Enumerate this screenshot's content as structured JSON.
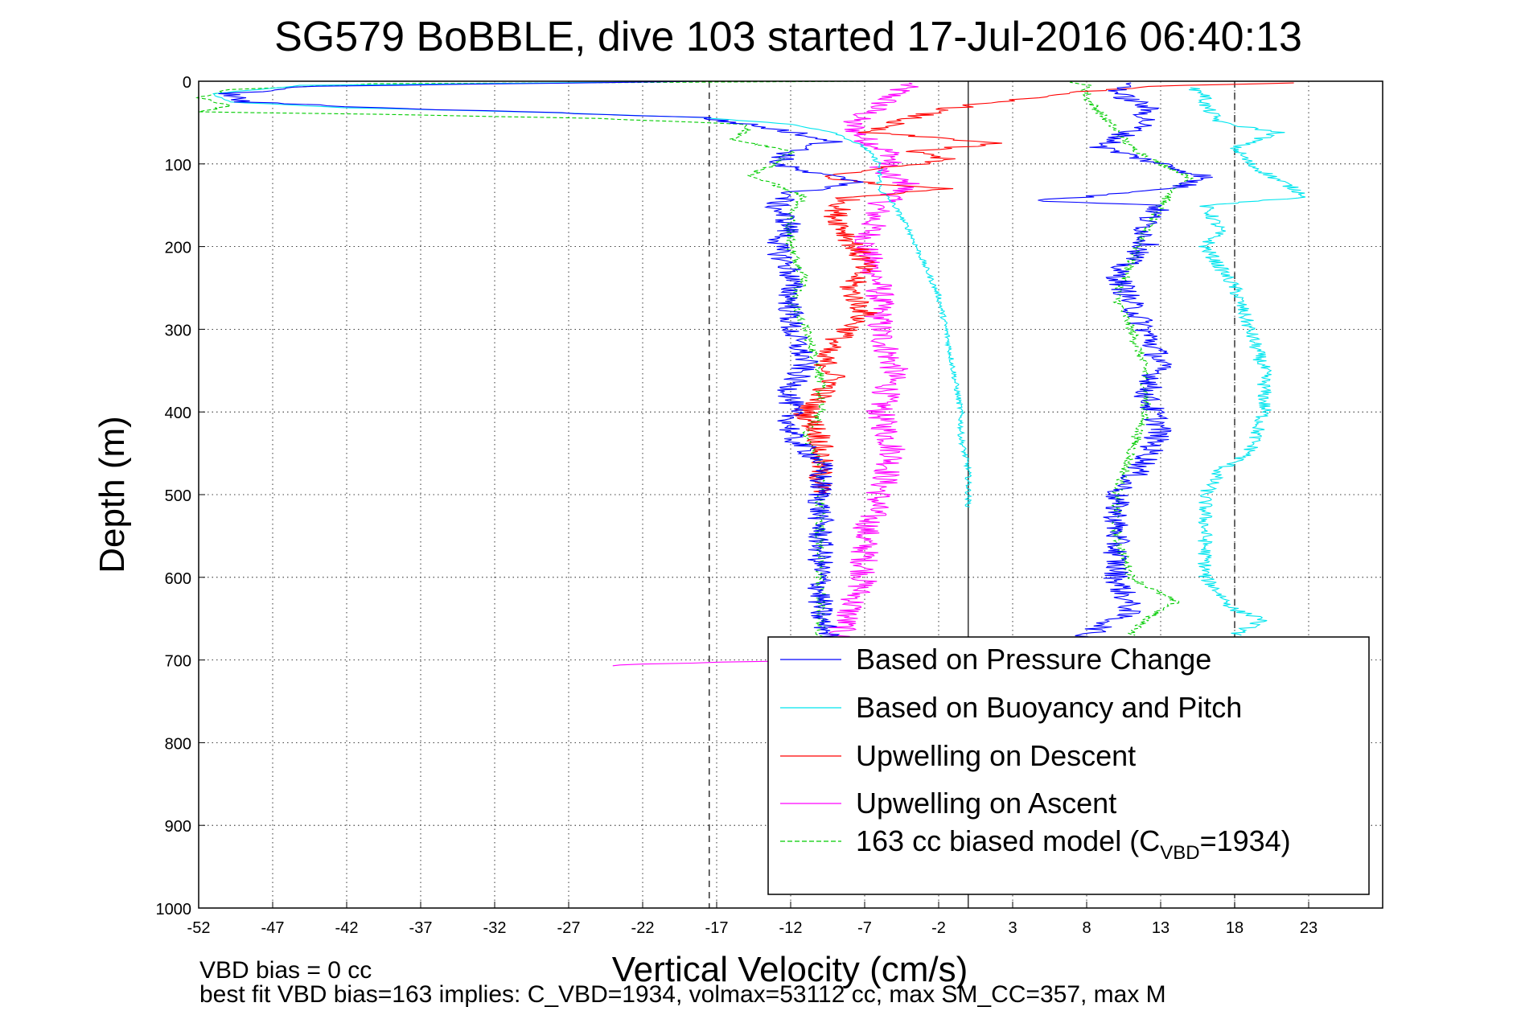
{
  "chart_data": {
    "type": "line",
    "title": "SG579 BoBBLE, dive 103 started 17-Jul-2016 06:40:13",
    "xlabel": "Vertical Velocity (cm/s)",
    "ylabel": "Depth (m)",
    "xlim": [
      -52,
      28
    ],
    "ylim": [
      0,
      1000
    ],
    "y_inverted": true,
    "grid": true,
    "legend_position": "lower-right",
    "x_ticks": [
      "-52",
      "-47",
      "-42",
      "-37",
      "-32",
      "-27",
      "-22",
      "-17",
      "-12",
      "-7",
      "-2",
      "3",
      "8",
      "13",
      "18",
      "23"
    ],
    "y_ticks": [
      "0",
      "100",
      "200",
      "300",
      "400",
      "500",
      "600",
      "700",
      "800",
      "900",
      "1000"
    ],
    "reference_lines": [
      {
        "x": -17.5,
        "style": "dashed",
        "color": "#000000"
      },
      {
        "x": 0,
        "style": "solid",
        "color": "#000000"
      },
      {
        "x": 18,
        "style": "dashed",
        "color": "#000000"
      }
    ],
    "series": [
      {
        "name": "Based on Pressure Change",
        "color": "#0000ff",
        "noise": 0.9,
        "points": [
          [
            -18,
            0
          ],
          [
            -44,
            6
          ],
          [
            -50,
            15
          ],
          [
            -49,
            25
          ],
          [
            -40,
            32
          ],
          [
            -28,
            38
          ],
          [
            -18,
            44
          ],
          [
            -15,
            52
          ],
          [
            -13,
            58
          ],
          [
            -9,
            72
          ],
          [
            -12,
            85
          ],
          [
            -13,
            100
          ],
          [
            -11,
            110
          ],
          [
            -7,
            122
          ],
          [
            -12,
            135
          ],
          [
            -13,
            150
          ],
          [
            -12,
            175
          ],
          [
            -13,
            200
          ],
          [
            -12,
            230
          ],
          [
            -12,
            260
          ],
          [
            -12,
            300
          ],
          [
            -11,
            340
          ],
          [
            -12,
            370
          ],
          [
            -12,
            400
          ],
          [
            -12,
            430
          ],
          [
            -10,
            460
          ],
          [
            -10,
            500
          ],
          [
            -10,
            550
          ],
          [
            -10,
            600
          ],
          [
            -10,
            650
          ],
          [
            -9,
            680
          ],
          [
            -8,
            700
          ],
          [
            -6,
            706
          ]
        ]
      },
      {
        "name": "Based on Pressure Change",
        "color": "#0000ff",
        "noise": 0.9,
        "points": [
          [
            11,
            2
          ],
          [
            10,
            15
          ],
          [
            12,
            30
          ],
          [
            12,
            50
          ],
          [
            9,
            80
          ],
          [
            13,
            100
          ],
          [
            16,
            115
          ],
          [
            14,
            130
          ],
          [
            8,
            140
          ],
          [
            4,
            144
          ],
          [
            13,
            150
          ],
          [
            12,
            170
          ],
          [
            12,
            200
          ],
          [
            10,
            230
          ],
          [
            11,
            270
          ],
          [
            12,
            300
          ],
          [
            13,
            340
          ],
          [
            12,
            380
          ],
          [
            13,
            420
          ],
          [
            12,
            460
          ],
          [
            10,
            500
          ],
          [
            10,
            550
          ],
          [
            10,
            600
          ],
          [
            11,
            640
          ],
          [
            9,
            660
          ],
          [
            7,
            680
          ]
        ]
      },
      {
        "name": "Based on Buoyancy and Pitch",
        "color": "#00e5ee",
        "noise": 0.2,
        "points": [
          [
            -18,
            0
          ],
          [
            -45,
            5
          ],
          [
            -51,
            15
          ],
          [
            -50,
            25
          ],
          [
            -42,
            32
          ],
          [
            -28,
            38
          ],
          [
            -18,
            44
          ],
          [
            -12,
            52
          ],
          [
            -9,
            62
          ],
          [
            -7,
            80
          ],
          [
            -6,
            100
          ],
          [
            -6,
            130
          ],
          [
            -5,
            150
          ],
          [
            -4,
            180
          ],
          [
            -3,
            220
          ],
          [
            -2,
            260
          ],
          [
            -1.5,
            300
          ],
          [
            -1,
            350
          ],
          [
            -0.5,
            400
          ],
          [
            -0.5,
            430
          ],
          [
            0,
            470
          ],
          [
            0,
            515
          ]
        ]
      },
      {
        "name": "Based on Buoyancy and Pitch",
        "color": "#00e5ee",
        "noise": 0.5,
        "points": [
          [
            15,
            8
          ],
          [
            16,
            15
          ],
          [
            16,
            30
          ],
          [
            17,
            50
          ],
          [
            21,
            62
          ],
          [
            18,
            80
          ],
          [
            19,
            100
          ],
          [
            21,
            120
          ],
          [
            23,
            140
          ],
          [
            16,
            150
          ],
          [
            17,
            180
          ],
          [
            16,
            200
          ],
          [
            18,
            250
          ],
          [
            19,
            300
          ],
          [
            20,
            350
          ],
          [
            20,
            400
          ],
          [
            19,
            450
          ],
          [
            17,
            470
          ],
          [
            16,
            500
          ],
          [
            16,
            550
          ],
          [
            16,
            600
          ],
          [
            18,
            640
          ],
          [
            20,
            650
          ],
          [
            18,
            670
          ]
        ]
      },
      {
        "name": "Upwelling on Descent",
        "color": "#ff0000",
        "noise": 0.9,
        "points": [
          [
            22,
            2
          ],
          [
            14,
            5
          ],
          [
            6,
            15
          ],
          [
            2,
            25
          ],
          [
            -2,
            35
          ],
          [
            -5,
            50
          ],
          [
            -7,
            62
          ],
          [
            -1,
            70
          ],
          [
            2,
            75
          ],
          [
            -4,
            85
          ],
          [
            -1,
            95
          ],
          [
            -6,
            105
          ],
          [
            -10,
            115
          ],
          [
            -6,
            125
          ],
          [
            -1,
            130
          ],
          [
            -8,
            140
          ],
          [
            -9,
            160
          ],
          [
            -8,
            190
          ],
          [
            -7,
            220
          ],
          [
            -8,
            250
          ],
          [
            -7,
            280
          ],
          [
            -8,
            300
          ],
          [
            -10,
            330
          ],
          [
            -9,
            360
          ],
          [
            -11,
            400
          ],
          [
            -10,
            430
          ],
          [
            -10,
            460
          ],
          [
            -10,
            490
          ],
          [
            -10,
            500
          ]
        ]
      },
      {
        "name": "Upwelling on Ascent",
        "color": "#ff00ff",
        "noise": 1.0,
        "points": [
          [
            -4,
            2
          ],
          [
            -5,
            15
          ],
          [
            -6,
            30
          ],
          [
            -8,
            50
          ],
          [
            -7,
            70
          ],
          [
            -5,
            90
          ],
          [
            -6,
            110
          ],
          [
            -4,
            125
          ],
          [
            -6,
            150
          ],
          [
            -7,
            200
          ],
          [
            -6,
            250
          ],
          [
            -6,
            300
          ],
          [
            -5,
            350
          ],
          [
            -6,
            400
          ],
          [
            -5,
            450
          ],
          [
            -6,
            500
          ],
          [
            -7,
            550
          ],
          [
            -7,
            600
          ],
          [
            -8,
            640
          ],
          [
            -9,
            680
          ],
          [
            -10,
            700
          ],
          [
            -22,
            705
          ],
          [
            -25,
            707
          ]
        ]
      },
      {
        "name": "163 cc biased model (C_VBD=1934)",
        "color": "#00cc00",
        "dashed": true,
        "noise": 0.35,
        "points": [
          [
            -6,
            0
          ],
          [
            -40,
            3
          ],
          [
            -50,
            10
          ],
          [
            -52,
            20
          ],
          [
            -50,
            30
          ],
          [
            -52,
            37
          ],
          [
            -40,
            40
          ],
          [
            -25,
            45
          ],
          [
            -15,
            52
          ],
          [
            -15,
            60
          ],
          [
            -16,
            70
          ],
          [
            -12,
            85
          ],
          [
            -13,
            100
          ],
          [
            -15,
            115
          ],
          [
            -13,
            125
          ],
          [
            -11,
            140
          ],
          [
            -12,
            160
          ],
          [
            -12,
            200
          ],
          [
            -11,
            240
          ],
          [
            -12,
            265
          ],
          [
            -11,
            300
          ],
          [
            -10,
            350
          ],
          [
            -10,
            400
          ],
          [
            -11,
            430
          ],
          [
            -10,
            460
          ],
          [
            -10,
            500
          ],
          [
            -10,
            550
          ],
          [
            -10,
            600
          ],
          [
            -10,
            650
          ],
          [
            -10,
            680
          ],
          [
            7,
            0
          ],
          [
            8,
            5
          ],
          [
            8,
            20
          ],
          [
            9,
            40
          ],
          [
            10,
            60
          ],
          [
            11,
            80
          ],
          [
            13,
            100
          ],
          [
            15,
            115
          ],
          [
            14,
            130
          ],
          [
            13,
            150
          ],
          [
            12,
            180
          ],
          [
            11,
            220
          ],
          [
            10,
            260
          ],
          [
            11,
            300
          ],
          [
            12,
            350
          ],
          [
            12,
            400
          ],
          [
            11,
            450
          ],
          [
            10,
            500
          ],
          [
            10,
            550
          ],
          [
            11,
            600
          ],
          [
            14,
            630
          ],
          [
            12,
            650
          ],
          [
            11,
            670
          ]
        ]
      }
    ],
    "legend": [
      {
        "label": "Based on Pressure Change",
        "color": "#0000ff",
        "style": "solid"
      },
      {
        "label": "Based on Buoyancy and Pitch",
        "color": "#00e5ee",
        "style": "solid"
      },
      {
        "label": "Upwelling on Descent",
        "color": "#ff0000",
        "style": "solid"
      },
      {
        "label": "Upwelling on Ascent",
        "color": "#ff00ff",
        "style": "solid"
      },
      {
        "label_main": "163 cc biased model (C",
        "label_sub": "VBD",
        "label_tail": "=1934)",
        "color": "#00cc00",
        "style": "dashed"
      }
    ],
    "notes": [
      "VBD bias = 0 cc",
      "best fit VBD bias=163 implies: C_VBD=1934, volmax=53112 cc, max SM_CC=357, max M"
    ]
  }
}
